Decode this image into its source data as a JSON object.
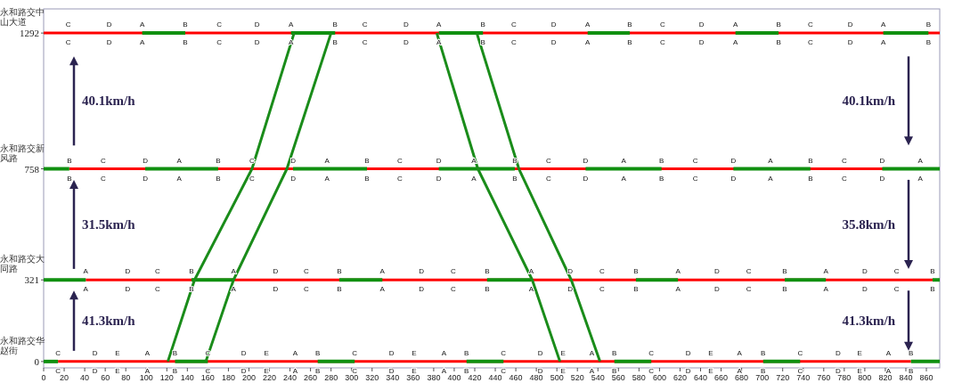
{
  "chart_data": {
    "type": "line",
    "xlim": [
      0,
      873
    ],
    "ylim": [
      -25,
      1387
    ],
    "xticks": [
      0,
      20,
      40,
      60,
      80,
      100,
      120,
      140,
      160,
      180,
      200,
      220,
      240,
      260,
      280,
      300,
      320,
      340,
      360,
      380,
      400,
      420,
      440,
      460,
      480,
      500,
      520,
      540,
      560,
      580,
      600,
      620,
      640,
      660,
      680,
      700,
      720,
      740,
      760,
      780,
      800,
      820,
      840,
      860
    ],
    "yticks": [
      0,
      321,
      758,
      1292
    ],
    "series": [
      {
        "color": "#ff0000",
        "x": [
          0,
          24,
          64,
          96,
          138,
          171,
          208,
          241,
          284,
          313,
          353,
          385,
          428,
          458,
          497,
          530,
          571,
          603,
          641,
          674,
          716,
          747,
          786,
          818,
          862,
          873
        ],
        "values": [
          1292,
          1292,
          1292,
          1292,
          1292,
          1292,
          1292,
          1292,
          1292,
          1292,
          1292,
          1292,
          1292,
          1292,
          1292,
          1292,
          1292,
          1292,
          1292,
          1292,
          1292,
          1292,
          1292,
          1292,
          1292,
          1292
        ],
        "value_labels": [
          null,
          "C",
          "D",
          "A",
          "B",
          "C",
          "D",
          "A",
          "B",
          "C",
          "D",
          "A",
          "B",
          "C",
          "D",
          "A",
          "B",
          "C",
          "D",
          "A",
          "B",
          "C",
          "D",
          "A",
          "B",
          null
        ]
      },
      {
        "color": "#ff0000",
        "x": [
          25,
          58,
          99,
          132,
          170,
          203,
          243,
          276,
          315,
          347,
          385,
          419,
          459,
          492,
          528,
          565,
          602,
          635,
          672,
          708,
          747,
          780,
          817,
          854
        ],
        "values": [
          758,
          758,
          758,
          758,
          758,
          758,
          758,
          758,
          758,
          758,
          758,
          758,
          758,
          758,
          758,
          758,
          758,
          758,
          758,
          758,
          758,
          758,
          758,
          758
        ],
        "value_labels": [
          "B",
          "C",
          "D",
          "A",
          "B",
          "C",
          "D",
          "A",
          "B",
          "C",
          "D",
          "A",
          "B",
          "C",
          "D",
          "A",
          "B",
          "C",
          "D",
          "A",
          "B",
          "C",
          "D",
          "A"
        ]
      },
      {
        "color": "#ff0000",
        "x": [
          41,
          82,
          111,
          144,
          185,
          226,
          256,
          288,
          330,
          368,
          399,
          432,
          475,
          513,
          544,
          577,
          618,
          656,
          687,
          722,
          762,
          800,
          831,
          866
        ],
        "values": [
          321,
          321,
          321,
          321,
          321,
          321,
          321,
          321,
          321,
          321,
          321,
          321,
          321,
          321,
          321,
          321,
          321,
          321,
          321,
          321,
          321,
          321,
          321,
          321
        ],
        "value_labels": [
          "A",
          "D",
          "C",
          "B",
          "A",
          "D",
          "C",
          "B",
          "A",
          "D",
          "C",
          "B",
          "A",
          "D",
          "C",
          "B",
          "A",
          "D",
          "C",
          "B",
          "A",
          "D",
          "C",
          "B"
        ]
      },
      {
        "color": "#ff0000",
        "x": [
          14,
          50,
          72,
          101,
          128,
          160,
          195,
          217,
          245,
          267,
          303,
          339,
          361,
          390,
          412,
          448,
          484,
          506,
          534,
          556,
          592,
          628,
          650,
          678,
          701,
          737,
          774,
          795,
          823,
          845
        ],
        "values": [
          0,
          0,
          0,
          0,
          0,
          0,
          0,
          0,
          0,
          0,
          0,
          0,
          0,
          0,
          0,
          0,
          0,
          0,
          0,
          0,
          0,
          0,
          0,
          0,
          0,
          0,
          0,
          0,
          0,
          0
        ],
        "value_labels": [
          "C",
          "D",
          "E",
          "A",
          "B",
          "C",
          "D",
          "E",
          "A",
          "B",
          "C",
          "D",
          "E",
          "A",
          "B",
          "C",
          "D",
          "E",
          "A",
          "B",
          "C",
          "D",
          "E",
          "A",
          "B",
          "C",
          "D",
          "E",
          "A",
          "B"
        ]
      },
      {
        "color": "#109010",
        "x": [
          96,
          138
        ],
        "values": [
          1292,
          1292
        ]
      },
      {
        "color": "#109010",
        "x": [
          241,
          284
        ],
        "values": [
          1292,
          1292
        ]
      },
      {
        "color": "#109010",
        "x": [
          385,
          428
        ],
        "values": [
          1292,
          1292
        ]
      },
      {
        "color": "#109010",
        "x": [
          530,
          571
        ],
        "values": [
          1292,
          1292
        ]
      },
      {
        "color": "#109010",
        "x": [
          674,
          716
        ],
        "values": [
          1292,
          1292
        ]
      },
      {
        "color": "#109010",
        "x": [
          818,
          862
        ],
        "values": [
          1292,
          1292
        ]
      },
      {
        "color": "#109010",
        "x": [
          0,
          25
        ],
        "values": [
          758,
          758
        ]
      },
      {
        "color": "#109010",
        "x": [
          99,
          170
        ],
        "values": [
          758,
          758
        ]
      },
      {
        "color": "#109010",
        "x": [
          243,
          315
        ],
        "values": [
          758,
          758
        ]
      },
      {
        "color": "#109010",
        "x": [
          385,
          459
        ],
        "values": [
          758,
          758
        ]
      },
      {
        "color": "#109010",
        "x": [
          528,
          602
        ],
        "values": [
          758,
          758
        ]
      },
      {
        "color": "#109010",
        "x": [
          672,
          747
        ],
        "values": [
          758,
          758
        ]
      },
      {
        "color": "#109010",
        "x": [
          817,
          873
        ],
        "values": [
          758,
          758
        ]
      },
      {
        "color": "#109010",
        "x": [
          0,
          41
        ],
        "values": [
          321,
          321
        ]
      },
      {
        "color": "#109010",
        "x": [
          144,
          185
        ],
        "values": [
          321,
          321
        ]
      },
      {
        "color": "#109010",
        "x": [
          288,
          330
        ],
        "values": [
          321,
          321
        ]
      },
      {
        "color": "#109010",
        "x": [
          432,
          475
        ],
        "values": [
          321,
          321
        ]
      },
      {
        "color": "#109010",
        "x": [
          577,
          618
        ],
        "values": [
          321,
          321
        ]
      },
      {
        "color": "#109010",
        "x": [
          722,
          762
        ],
        "values": [
          321,
          321
        ]
      },
      {
        "color": "#109010",
        "x": [
          866,
          873
        ],
        "values": [
          321,
          321
        ]
      },
      {
        "color": "#109010",
        "x": [
          0,
          14
        ],
        "values": [
          0,
          0
        ]
      },
      {
        "color": "#109010",
        "x": [
          128,
          160
        ],
        "values": [
          0,
          0
        ]
      },
      {
        "color": "#109010",
        "x": [
          267,
          303
        ],
        "values": [
          0,
          0
        ]
      },
      {
        "color": "#109010",
        "x": [
          412,
          448
        ],
        "values": [
          0,
          0
        ]
      },
      {
        "color": "#109010",
        "x": [
          556,
          592
        ],
        "values": [
          0,
          0
        ]
      },
      {
        "color": "#109010",
        "x": [
          701,
          737
        ],
        "values": [
          0,
          0
        ]
      },
      {
        "color": "#109010",
        "x": [
          845,
          873
        ],
        "values": [
          0,
          0
        ]
      },
      {
        "color": "#1a8c1a",
        "x": [
          121,
          147,
          203,
          244
        ],
        "values": [
          0,
          321,
          758,
          1292
        ]
      },
      {
        "color": "#1a8c1a",
        "x": [
          158,
          185,
          237,
          280
        ],
        "values": [
          0,
          321,
          758,
          1292
        ]
      },
      {
        "color": "#1a8c1a",
        "x": [
          383,
          423,
          476,
          503
        ],
        "values": [
          1292,
          758,
          321,
          0
        ]
      },
      {
        "color": "#1a8c1a",
        "x": [
          422,
          463,
          514,
          542
        ],
        "values": [
          1292,
          758,
          321,
          0
        ]
      }
    ],
    "annotations": [
      "永和路交华赵街",
      "永和路交大同路",
      "永和路交新风路",
      "永和路交中山大道",
      "40.1km/h",
      "31.5km/h",
      "41.3km/h",
      "40.1km/h",
      "35.8km/h",
      "41.3km/h"
    ]
  }
}
